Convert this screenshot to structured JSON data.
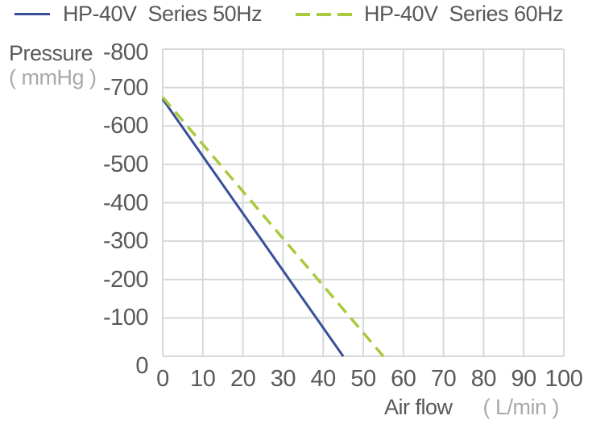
{
  "colors": {
    "text_dark": "#58595b",
    "text_light": "#a7a9ac",
    "grid": "#d7d8d9",
    "grid_border": "#cdcfd1",
    "series_50hz": "#3a4f99",
    "series_60hz": "#a9ca3e"
  },
  "chart_data": {
    "type": "line",
    "title": "",
    "xlabel": "Air flow",
    "xunit": "( L/min )",
    "ylabel": "Pressure",
    "yunit": "( mmHg )",
    "xlim": [
      0,
      100
    ],
    "ylim": [
      0,
      -800
    ],
    "x_ticks": [
      0,
      10,
      20,
      30,
      40,
      50,
      60,
      70,
      80,
      90,
      100
    ],
    "y_ticks": [
      -800,
      -700,
      -600,
      -500,
      -400,
      -300,
      -200,
      -100,
      0
    ],
    "grid": true,
    "legend_position": "top",
    "series": [
      {
        "name": "HP-40V  Series 50Hz",
        "style": "solid",
        "color": "#3a4f99",
        "points": [
          [
            0,
            -670
          ],
          [
            45,
            0
          ]
        ]
      },
      {
        "name": "HP-40V  Series 60Hz",
        "style": "dashed",
        "color": "#a9ca3e",
        "points": [
          [
            0,
            -675
          ],
          [
            55,
            0
          ]
        ]
      }
    ]
  }
}
